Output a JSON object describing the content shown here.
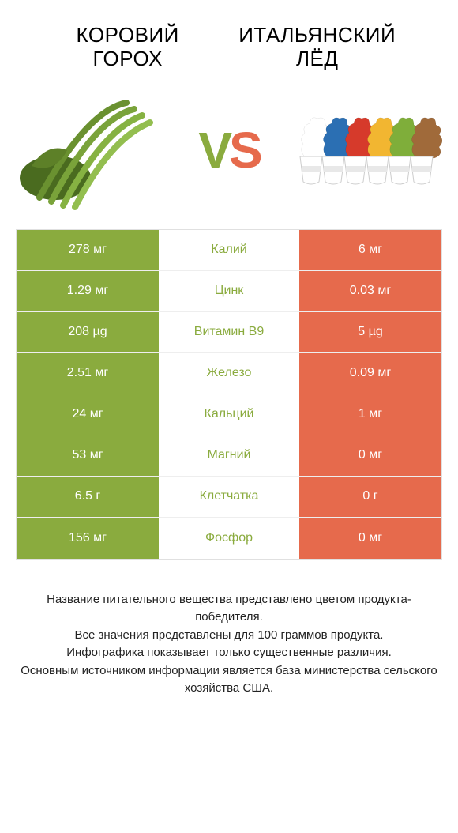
{
  "colors": {
    "left_product": "#8aab3e",
    "right_product": "#e66a4c",
    "vs_v": "#8aab3e",
    "vs_s": "#e66a4c",
    "text": "#333333"
  },
  "header": {
    "left_title": "КОРОВИЙ ГОРОХ",
    "right_title": "ИТАЛЬЯНСКИЙ ЛЁД"
  },
  "vs": {
    "v": "V",
    "s": "S"
  },
  "nutrients": [
    {
      "label": "Калий",
      "left": "278 мг",
      "right": "6 мг",
      "winner": "left"
    },
    {
      "label": "Цинк",
      "left": "1.29 мг",
      "right": "0.03 мг",
      "winner": "left"
    },
    {
      "label": "Витамин B9",
      "left": "208 µg",
      "right": "5 µg",
      "winner": "left"
    },
    {
      "label": "Железо",
      "left": "2.51 мг",
      "right": "0.09 мг",
      "winner": "left"
    },
    {
      "label": "Кальций",
      "left": "24 мг",
      "right": "1 мг",
      "winner": "left"
    },
    {
      "label": "Магний",
      "left": "53 мг",
      "right": "0 мг",
      "winner": "left"
    },
    {
      "label": "Клетчатка",
      "left": "6.5 г",
      "right": "0 г",
      "winner": "left"
    },
    {
      "label": "Фосфор",
      "left": "156 мг",
      "right": "0 мг",
      "winner": "left"
    }
  ],
  "footnote": "Название питательного вещества представлено цветом продукта-победителя.\nВсе значения представлены для 100 граммов продукта.\nИнфографика показывает только существенные различия.\nОсновным источником информации является база министерства сельского хозяйства США."
}
